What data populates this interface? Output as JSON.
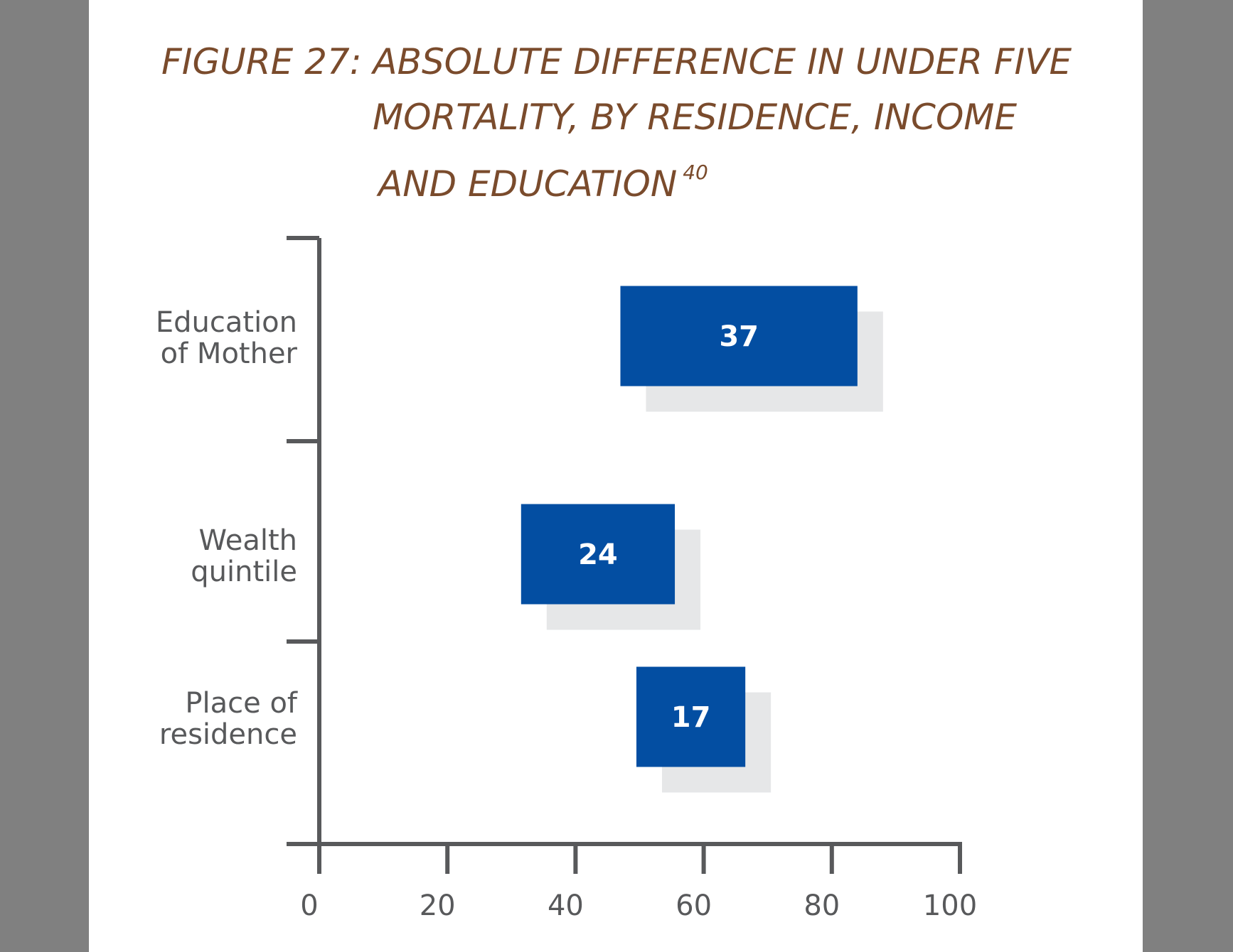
{
  "title": {
    "line1": "FIGURE 27: ABSOLUTE DIFFERENCE IN UNDER FIVE",
    "line2": "MORTALITY, BY RESIDENCE, INCOME",
    "line3": "AND EDUCATION",
    "footnote": "40"
  },
  "colors": {
    "title": "#7a4b2c",
    "bar": "#034ea2",
    "shadow": "#e6e7e8",
    "axis": "#58595b",
    "page_background": "#808080"
  },
  "chart_data": {
    "type": "bar",
    "orientation": "horizontal",
    "bar_style": "floating range",
    "categories": [
      {
        "label": [
          "Education",
          "of Mother"
        ],
        "start": 47,
        "end": 84,
        "value": 37
      },
      {
        "label": [
          "Wealth",
          "quintile"
        ],
        "start": 31.5,
        "end": 55.5,
        "value": 24
      },
      {
        "label": [
          "Place of",
          "residence"
        ],
        "start": 49.5,
        "end": 66.5,
        "value": 17
      }
    ],
    "xlim": [
      0,
      100
    ],
    "xticks": [
      "0",
      "20",
      "40",
      "60",
      "80",
      "100"
    ],
    "grid": false,
    "legend": "none"
  }
}
